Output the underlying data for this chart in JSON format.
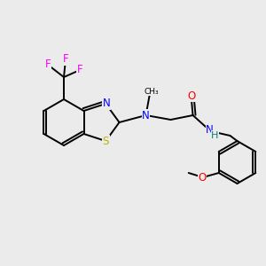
{
  "background_color": "#ebebeb",
  "bond_color": "#000000",
  "atom_colors": {
    "F": "#ff00ff",
    "N": "#0000ff",
    "O": "#ff0000",
    "S": "#b8b800",
    "H": "#008080",
    "C": "#000000"
  },
  "figsize": [
    3.0,
    3.0
  ],
  "dpi": 100
}
